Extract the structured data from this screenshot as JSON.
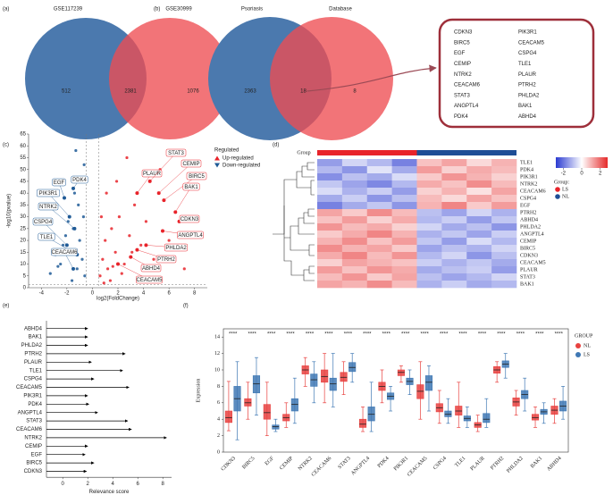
{
  "chart_data": [
    {
      "type": "venn",
      "panel": "(a)",
      "sets": [
        {
          "name": "GSE117239",
          "color": "#4b79ae"
        },
        {
          "name": "GSE30999",
          "color": "#ee4d52"
        }
      ],
      "counts": [
        512,
        2381,
        1076
      ]
    },
    {
      "type": "venn",
      "panel": "(b)",
      "sets": [
        {
          "name": "Psoriasis",
          "color": "#4b79ae"
        },
        {
          "name": "Database",
          "color": "#ee4d52"
        }
      ],
      "counts": [
        2363,
        18,
        8
      ],
      "genes": [
        "CDKN3",
        "BIRC5",
        "EGF",
        "CEMIP",
        "NTRK2",
        "CEACAM6",
        "STAT3",
        "ANGPTL4",
        "PDK4",
        "PIK3R1",
        "CEACAM5",
        "CSPG4",
        "TLE1",
        "PLAUR",
        "PTRH2",
        "PHLDA2",
        "BAK1",
        "ABHD4"
      ]
    },
    {
      "type": "scatter",
      "panel": "(c)",
      "xlabel": "log2(FoldChange)",
      "ylabel": "-log10(pvalue)",
      "xlim": [
        -5,
        9
      ],
      "xticks": [
        -4,
        -2,
        0,
        2,
        4,
        6,
        8
      ],
      "ylim": [
        0,
        65
      ],
      "yticks": [
        0,
        5,
        10,
        15,
        20,
        25,
        30,
        35,
        40,
        45,
        50,
        55,
        60,
        65
      ],
      "cutoff_lines": {
        "x": [
          -0.5,
          0.5
        ],
        "y": [
          1.3
        ]
      },
      "legend_title": "Regulated",
      "series": [
        {
          "name": "Up-regulated",
          "color": "#e8232a",
          "x": [
            0.6,
            0.8,
            1.0,
            1.2,
            1.5,
            1.8,
            2.1,
            2.5,
            2.9,
            3.3,
            3.8,
            4.2,
            4.8,
            5.3,
            6.0,
            7.2,
            0.7,
            1.1,
            1.4,
            1.9,
            2.3,
            2.7,
            3.1,
            0.9,
            1.6
          ],
          "y": [
            5,
            12,
            20,
            8,
            25,
            15,
            30,
            10,
            22,
            35,
            18,
            28,
            12,
            50,
            20,
            8,
            30,
            40,
            3,
            45,
            6,
            55,
            15,
            2,
            9
          ]
        },
        {
          "name": "Down-regulated",
          "color": "#1f5a96",
          "x": [
            -0.6,
            -0.8,
            -1.0,
            -1.2,
            -1.5,
            -1.8,
            -2.1,
            -2.5,
            -2.9,
            -3.3,
            -0.7,
            -1.1,
            -1.4,
            -0.9,
            -1.6,
            -2.3,
            -1.9,
            -0.65,
            -1.3,
            -2.7
          ],
          "y": [
            5,
            12,
            20,
            8,
            25,
            15,
            22,
            10,
            14,
            6,
            30,
            35,
            40,
            45,
            3,
            18,
            28,
            52,
            58,
            9
          ]
        }
      ],
      "labeled": [
        {
          "gene": "PLAUR",
          "x": 3.5,
          "y": 40
        },
        {
          "gene": "STAT3",
          "x": 4.5,
          "y": 45
        },
        {
          "gene": "CEMIP",
          "x": 5.2,
          "y": 40
        },
        {
          "gene": "BIRC5",
          "x": 5.6,
          "y": 37
        },
        {
          "gene": "BAK1",
          "x": 6.5,
          "y": 32
        },
        {
          "gene": "CDKN3",
          "x": 6.8,
          "y": 28
        },
        {
          "gene": "ANGPTL4",
          "x": 5.5,
          "y": 24
        },
        {
          "gene": "PHLDA2",
          "x": 4.2,
          "y": 18
        },
        {
          "gene": "PTRH2",
          "x": 3.5,
          "y": 16
        },
        {
          "gene": "ABHD4",
          "x": 3.0,
          "y": 13
        },
        {
          "gene": "CEACAM5",
          "x": 2.0,
          "y": 10
        },
        {
          "gene": "PDK4",
          "x": -1.5,
          "y": 42
        },
        {
          "gene": "EGF",
          "x": -2.2,
          "y": 38
        },
        {
          "gene": "PIK3R1",
          "x": -1.8,
          "y": 30
        },
        {
          "gene": "NTRK2",
          "x": -1.4,
          "y": 25
        },
        {
          "gene": "CSPG4",
          "x": -2.0,
          "y": 18
        },
        {
          "gene": "TLE1",
          "x": -1.2,
          "y": 14
        },
        {
          "gene": "CEACAM6",
          "x": -1.5,
          "y": 8
        }
      ]
    },
    {
      "type": "heatmap",
      "panel": "(d)",
      "group_label": "Group",
      "legend_title": "Group:",
      "clim": [
        -2.8,
        2.8
      ],
      "cticks": [
        -2,
        0,
        2
      ],
      "rows": [
        "TLE1",
        "PDK4",
        "PIK3R1",
        "NTRK2",
        "CEACAM6",
        "CSPG4",
        "EGF",
        "PTRH2",
        "ABHD4",
        "PHLDA2",
        "ANGPTL4",
        "CEMIP",
        "BIRC5",
        "CDKN3",
        "CEACAM5",
        "PLAUR",
        "STAT3",
        "BAK1"
      ],
      "series": [
        {
          "name": "LS",
          "color": "#e8232a",
          "values": [
            [
              -1.4,
              -0.6,
              -1.0,
              -1.8
            ],
            [
              -1.0,
              -1.5,
              -0.4,
              -1.2
            ],
            [
              -1.6,
              -0.9,
              -1.2,
              -0.5
            ],
            [
              -0.8,
              -1.3,
              -1.7,
              -1.0
            ],
            [
              -0.5,
              -1.1,
              -0.7,
              -1.4
            ],
            [
              -1.2,
              -0.7,
              -1.5,
              -0.9
            ],
            [
              -1.8,
              -1.2,
              -0.8,
              -1.5
            ],
            [
              1.2,
              0.7,
              1.5,
              0.9
            ],
            [
              0.8,
              1.3,
              0.6,
              1.1
            ],
            [
              1.4,
              0.9,
              1.1,
              0.6
            ],
            [
              0.7,
              1.1,
              1.6,
              1.0
            ],
            [
              1.0,
              1.5,
              0.8,
              1.3
            ],
            [
              1.5,
              1.0,
              1.2,
              0.7
            ],
            [
              1.1,
              1.6,
              0.9,
              1.4
            ],
            [
              0.6,
              1.2,
              1.0,
              0.8
            ],
            [
              1.3,
              0.8,
              1.4,
              1.1
            ],
            [
              0.9,
              1.4,
              0.7,
              1.2
            ],
            [
              1.2,
              1.0,
              1.5,
              0.9
            ]
          ]
        },
        {
          "name": "NL",
          "color": "#1f4e96",
          "values": [
            [
              0.8,
              1.2,
              0.5,
              1.0
            ],
            [
              1.3,
              0.6,
              1.1,
              0.9
            ],
            [
              0.7,
              1.4,
              1.0,
              0.6
            ],
            [
              1.1,
              0.8,
              1.5,
              0.9
            ],
            [
              0.6,
              1.0,
              0.4,
              1.2
            ],
            [
              0.9,
              0.5,
              1.2,
              0.8
            ],
            [
              1.0,
              1.6,
              0.7,
              1.3
            ],
            [
              -0.9,
              -1.3,
              -0.6,
              -1.1
            ],
            [
              -1.0,
              -0.7,
              -1.4,
              -0.8
            ],
            [
              -0.6,
              -1.2,
              -0.9,
              -1.5
            ],
            [
              -1.1,
              -0.8,
              -1.3,
              -0.7
            ],
            [
              -0.8,
              -1.4,
              -0.5,
              -1.0
            ],
            [
              -1.3,
              -0.9,
              -1.1,
              -0.6
            ],
            [
              -1.0,
              -0.6,
              -1.5,
              -0.9
            ],
            [
              -0.7,
              -1.1,
              -0.8,
              -1.2
            ],
            [
              -1.2,
              -0.9,
              -0.7,
              -1.4
            ],
            [
              -0.9,
              -1.3,
              -1.0,
              -0.6
            ],
            [
              -1.1,
              -0.7,
              -1.2,
              -1.0
            ]
          ]
        }
      ]
    },
    {
      "type": "lollipop",
      "panel": "(e)",
      "xlabel": "Relevance score",
      "xlim": [
        -1.3,
        8.7
      ],
      "xticks": [
        0,
        2,
        4,
        6,
        8
      ],
      "categories": [
        "ABHD4",
        "BAK1",
        "PHLDA2",
        "PTRH2",
        "PLAUR",
        "TLE1",
        "CSPG4",
        "CEACAM5",
        "PIK3R1",
        "PDK4",
        "ANGPTL4",
        "STAT3",
        "CEACAM6",
        "NTRK2",
        "CEMIP",
        "EGF",
        "BIRC5",
        "CDKN3"
      ],
      "values": [
        2.0,
        2.0,
        2.0,
        5.0,
        2.3,
        4.8,
        2.5,
        5.3,
        2.0,
        2.1,
        2.8,
        5.2,
        5.5,
        8.3,
        2.0,
        1.8,
        2.5,
        1.9
      ],
      "color": "#000000"
    },
    {
      "type": "box",
      "panel": "(f)",
      "ylabel": "Expression",
      "legend_title": "GROUP",
      "ylim": [
        0,
        15
      ],
      "yticks": [
        0,
        2,
        4,
        6,
        8,
        10,
        12,
        14
      ],
      "categories": [
        "CDKN3",
        "BIRC5",
        "EGF",
        "CEMIP",
        "NTRK2",
        "CEACAM6",
        "STAT3",
        "ANGPTL4",
        "PDK4",
        "PIK3R1",
        "CEACAM5",
        "CSPG4",
        "TLE1",
        "PLAUR",
        "PTRH2",
        "PHLDA2",
        "BAK1",
        "ABHD4"
      ],
      "significance": [
        "****",
        "****",
        "****",
        "****",
        "****",
        "****",
        "****",
        "****",
        "****",
        "****",
        "****",
        "****",
        "****",
        "****",
        "****",
        "****",
        "****",
        "****"
      ],
      "series": [
        {
          "name": "NL",
          "color": "#e8413f",
          "values": [
            [
              2.6,
              3.6,
              4.2,
              5.0,
              8.6
            ],
            [
              4.0,
              5.6,
              6.0,
              6.5,
              8.5
            ],
            [
              2.0,
              4.0,
              4.8,
              5.8,
              8.5
            ],
            [
              3.0,
              3.8,
              4.2,
              4.6,
              6.0
            ],
            [
              8.0,
              9.5,
              10.0,
              10.5,
              11.5
            ],
            [
              6.0,
              8.5,
              9.2,
              10.0,
              12.0
            ],
            [
              7.0,
              8.6,
              9.1,
              9.7,
              11.0
            ],
            [
              2.5,
              3.0,
              3.4,
              4.0,
              5.5
            ],
            [
              6.0,
              7.5,
              8.0,
              8.5,
              10.0
            ],
            [
              8.5,
              9.3,
              9.7,
              10.0,
              10.5
            ],
            [
              4.0,
              6.5,
              7.4,
              8.2,
              11.0
            ],
            [
              3.5,
              4.9,
              5.4,
              5.9,
              7.5
            ],
            [
              3.0,
              4.5,
              5.0,
              5.6,
              8.5
            ],
            [
              2.5,
              3.0,
              3.3,
              3.6,
              4.5
            ],
            [
              8.5,
              9.6,
              10.0,
              10.4,
              11.0
            ],
            [
              4.5,
              5.6,
              6.1,
              6.6,
              7.5
            ],
            [
              3.0,
              3.9,
              4.2,
              4.6,
              5.5
            ],
            [
              3.5,
              4.6,
              5.1,
              5.6,
              6.5
            ]
          ]
        },
        {
          "name": "LS",
          "color": "#3f78b4",
          "values": [
            [
              1.5,
              5.0,
              6.5,
              8.0,
              11.0
            ],
            [
              4.5,
              7.2,
              8.3,
              9.3,
              11.5
            ],
            [
              2.5,
              2.8,
              3.1,
              3.3,
              4.0
            ],
            [
              3.5,
              5.0,
              5.8,
              6.5,
              9.0
            ],
            [
              6.0,
              8.0,
              8.8,
              9.5,
              11.0
            ],
            [
              5.5,
              7.5,
              8.3,
              9.0,
              12.0
            ],
            [
              8.5,
              9.8,
              10.3,
              10.9,
              12.0
            ],
            [
              2.5,
              3.8,
              4.6,
              5.5,
              8.5
            ],
            [
              5.0,
              6.4,
              6.8,
              7.2,
              8.0
            ],
            [
              7.0,
              8.2,
              8.6,
              9.0,
              10.0
            ],
            [
              5.0,
              7.5,
              8.5,
              9.3,
              10.5
            ],
            [
              3.5,
              4.3,
              4.6,
              5.0,
              6.5
            ],
            [
              3.0,
              3.8,
              4.1,
              4.4,
              5.5
            ],
            [
              3.0,
              3.6,
              4.0,
              4.7,
              6.5
            ],
            [
              9.0,
              10.3,
              10.7,
              11.1,
              12.0
            ],
            [
              5.0,
              6.5,
              7.0,
              7.5,
              9.0
            ],
            [
              3.5,
              4.6,
              4.9,
              5.2,
              6.0
            ],
            [
              4.0,
              5.0,
              5.6,
              6.2,
              8.0
            ]
          ]
        }
      ]
    }
  ]
}
